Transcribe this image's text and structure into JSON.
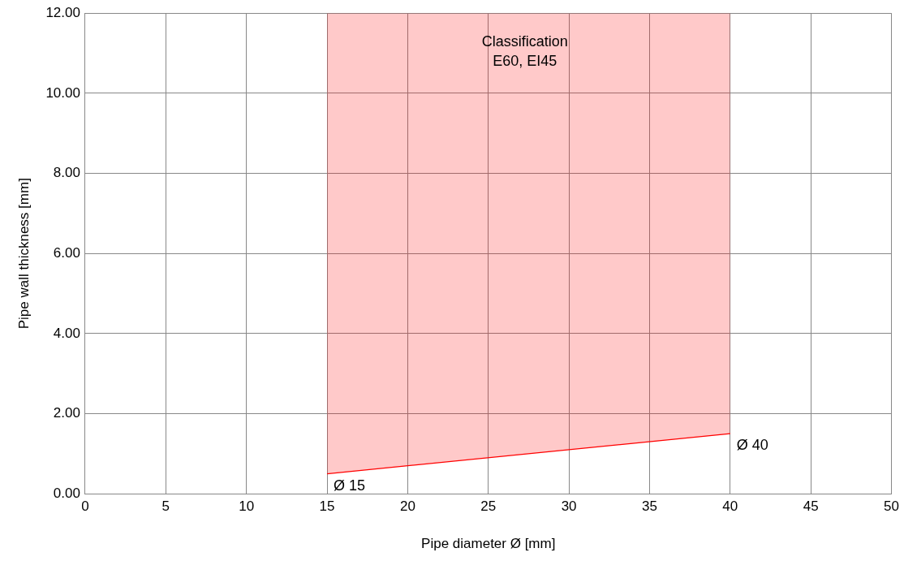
{
  "chart_data": {
    "type": "line",
    "xlabel": "Pipe diameter Ø [mm]",
    "ylabel": "Pipe wall thickness [mm]",
    "series": [
      {
        "color": "#ff0000",
        "x": [
          15,
          40
        ],
        "values": [
          0.5,
          1.5
        ],
        "lower": [
          0.5,
          1.5
        ],
        "upper": [
          12,
          12
        ]
      }
    ],
    "xlim": [
      0,
      50
    ],
    "xticks": [
      0,
      5,
      10,
      15,
      20,
      25,
      30,
      35,
      40,
      45,
      50
    ],
    "ylim": [
      0,
      12
    ],
    "yticks": [
      {
        "value": 0,
        "label": "0.00"
      },
      {
        "value": 2,
        "label": "2.00"
      },
      {
        "value": 4,
        "label": "4.00"
      },
      {
        "value": 6,
        "label": "6.00"
      },
      {
        "value": 8,
        "label": "8.00"
      },
      {
        "value": 10,
        "label": "10.00"
      },
      {
        "value": 12,
        "label": "12.00"
      }
    ],
    "grid": true,
    "legend": false,
    "marker": "none",
    "line_style": "solid",
    "annotations": [
      "Classification\nE60, EI45",
      {
        "text": "Ø 15",
        "x": 15,
        "y": 0.5
      },
      {
        "text": "Ø 40",
        "x": 40,
        "y": 1.5
      }
    ]
  }
}
